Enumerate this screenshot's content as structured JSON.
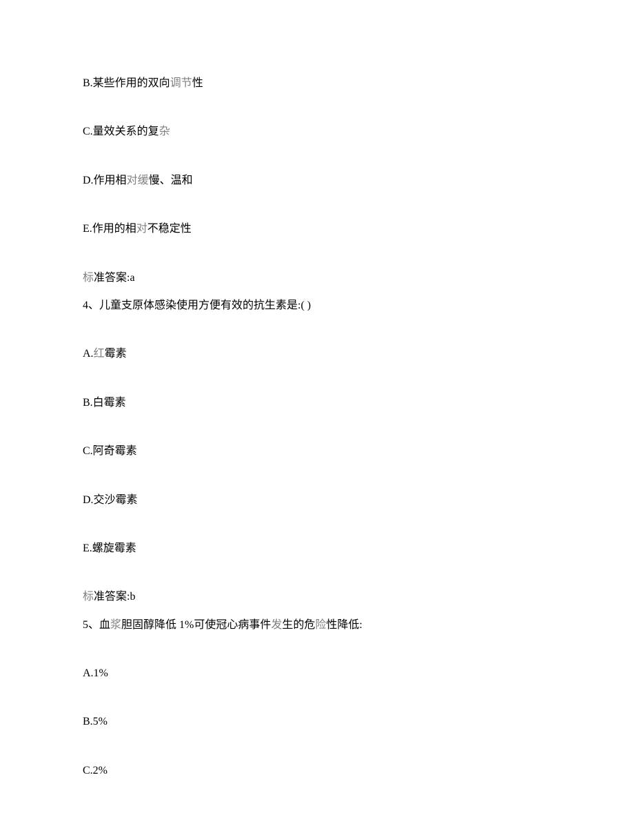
{
  "options_q3": {
    "b_prefix": "B.某些作用的双向",
    "b_gray": "调节",
    "b_suffix": "性",
    "c_prefix": "C.量效关系的复",
    "c_gray": "杂",
    "d_prefix": "D.作用相",
    "d_gray": "对缓",
    "d_suffix": "慢、温和",
    "e_prefix": "E.作用的相",
    "e_gray": "对",
    "e_suffix": "不稳定性"
  },
  "answer_q3": {
    "gray_prefix": "标",
    "text": "准答案:a"
  },
  "question_q4": {
    "prefix": "4、儿童支原体感染使用方便有效的抗生素是:( )"
  },
  "options_q4": {
    "a_prefix": "A.",
    "a_gray": "红",
    "a_suffix": "霉素",
    "b": "B.白霉素",
    "c": "C.阿奇霉素",
    "d": "D.交沙霉素",
    "e": "E.螺旋霉素"
  },
  "answer_q4": {
    "gray_prefix": "标",
    "text": "准答案:b"
  },
  "question_q5": {
    "prefix": "5、血",
    "gray1": "浆",
    "mid1": "胆固醇降低 1%可使冠心病事件",
    "gray2": "发",
    "mid2": "生的危",
    "gray3": "险",
    "suffix": "性降低:"
  },
  "options_q5": {
    "a": "A.1%",
    "b": "B.5%",
    "c": "C.2%"
  }
}
